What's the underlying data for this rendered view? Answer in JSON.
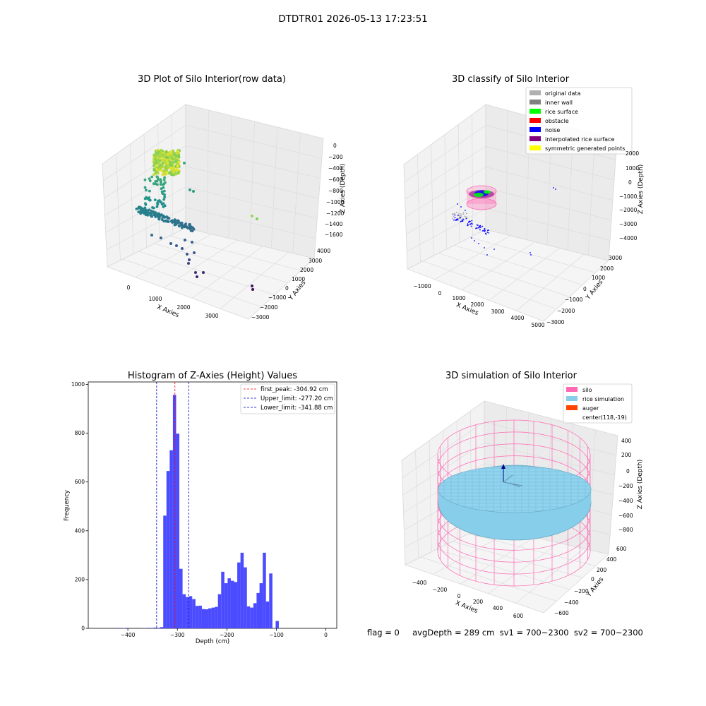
{
  "suptitle": "DTDTR01 2026-05-13 17:23:51",
  "colors": {
    "histogram_bar": "#4b4bff",
    "first_peak_line": "#ff0000",
    "limit_lines": "#0000cc",
    "silo_wireframe": "#ff69b4",
    "rice_simulation": "#87ceeb",
    "auger": "#ff4500",
    "axis_pane": "#f2f2f2"
  },
  "panels": {
    "raw": {
      "title": "3D Plot of Silo Interior(row data)",
      "xlabel": "X Axies",
      "ylabel": "Y Axies",
      "zlabel": "Z Axies (Depth)",
      "xticks": [
        "0",
        "1000",
        "2000",
        "3000"
      ],
      "yticks": [
        "4000",
        "3000",
        "2000",
        "1000",
        "0",
        "−1000",
        "−2000",
        "−3000"
      ],
      "zticks": [
        "0",
        "−200",
        "−400",
        "−600",
        "−800",
        "−1000",
        "−1200",
        "−1400",
        "−1600"
      ],
      "colormap": "viridis"
    },
    "classify": {
      "title": "3D classify of Silo Interior",
      "xlabel": "X Axies",
      "ylabel": "Y Axies",
      "zlabel": "Z Axies (Depth)",
      "xticks": [
        "−1000",
        "0",
        "1000",
        "2000",
        "3000",
        "4000",
        "5000"
      ],
      "yticks": [
        "3000",
        "2000",
        "1000",
        "0",
        "−1000",
        "−2000",
        "−3000"
      ],
      "zticks": [
        "2000",
        "1000",
        "0",
        "−1000",
        "−2000",
        "−3000",
        "−4000"
      ],
      "legend": [
        {
          "label": "original data",
          "color": "#b0b0b0"
        },
        {
          "label": "inner wall",
          "color": "#808080"
        },
        {
          "label": "rice surface",
          "color": "#00ff00"
        },
        {
          "label": "obstacle",
          "color": "#ff0000"
        },
        {
          "label": "noise",
          "color": "#0000ff"
        },
        {
          "label": "interpolated rice surface",
          "color": "#800080"
        },
        {
          "label": "symmetric generated points",
          "color": "#ffff00"
        }
      ]
    },
    "simulation": {
      "title": "3D simulation of Silo Interior",
      "xlabel": "X Axies",
      "ylabel": "Y Axies",
      "zlabel": "Z Axies (Depth)",
      "xticks": [
        "−400",
        "−200",
        "0",
        "200",
        "400",
        "600"
      ],
      "yticks": [
        "600",
        "400",
        "200",
        "0",
        "−200",
        "−400",
        "−600"
      ],
      "zticks": [
        "400",
        "200",
        "0",
        "−200",
        "−400",
        "−600",
        "−800"
      ],
      "legend": [
        {
          "label": "silo",
          "color": "#ff69b4"
        },
        {
          "label": "rice simulation",
          "color": "#87ceeb"
        },
        {
          "label": "auger",
          "color": "#ff4500"
        },
        {
          "label": "center(118,-19)",
          "color": ""
        }
      ]
    }
  },
  "chart_data": {
    "type": "bar",
    "title": "Histogram of Z-Axies (Height) Values",
    "xlabel": "Depth (cm)",
    "ylabel": "Frequency",
    "xlim": [
      -480,
      22
    ],
    "ylim": [
      0,
      1010
    ],
    "xticks": [
      -400,
      -300,
      -200,
      -100,
      0
    ],
    "xtick_labels": [
      "−400",
      "−300",
      "−200",
      "−100",
      "0"
    ],
    "yticks": [
      0,
      200,
      400,
      600,
      800,
      1000
    ],
    "bin_width": 6.5,
    "bin_starts": [
      -425,
      -412,
      -405,
      -370,
      -360,
      -348,
      -341.5,
      -335,
      -328.5,
      -322,
      -315.5,
      -309,
      -302.5,
      -296,
      -289.5,
      -283,
      -276.5,
      -270,
      -263.5,
      -257,
      -250.5,
      -244,
      -237.5,
      -231,
      -224.5,
      -218,
      -211.5,
      -205,
      -198.5,
      -192,
      -185.5,
      -179,
      -172.5,
      -166,
      -159.5,
      -153,
      -146.5,
      -140,
      -134,
      -127.5,
      -121,
      -114.5,
      -108,
      -101.5,
      -95,
      -88.5,
      -82,
      -75.5,
      -69,
      -62.5,
      -56,
      -49.5,
      -43,
      -36.5,
      -30,
      -23.5,
      -17,
      -10.5,
      -4
    ],
    "values": [
      2,
      1,
      2,
      1,
      2,
      3,
      2,
      5,
      462,
      645,
      730,
      957,
      798,
      244,
      140,
      128,
      132,
      120,
      92,
      93,
      79,
      78,
      82,
      85,
      88,
      140,
      232,
      185,
      205,
      195,
      190,
      270,
      310,
      250,
      90,
      85,
      103,
      145,
      185,
      310,
      110,
      225,
      0,
      30,
      0,
      0,
      0,
      0,
      0,
      0,
      0,
      0,
      0,
      0,
      0,
      0,
      0,
      0,
      0
    ],
    "reference_lines": [
      {
        "name": "first_peak: -304.92 cm",
        "x": -304.92,
        "color": "#ff0000"
      },
      {
        "name": "Upper_limit: -277.20 cm",
        "x": -277.2,
        "color": "#0000cc"
      },
      {
        "name": "Lower_limit: -341.88 cm",
        "x": -341.88,
        "color": "#0000cc"
      }
    ],
    "legend_position": "upper right"
  },
  "info_line": "flag = 0     avgDepth = 289 cm  sv1 = 700~2300  sv2 = 700~2300"
}
